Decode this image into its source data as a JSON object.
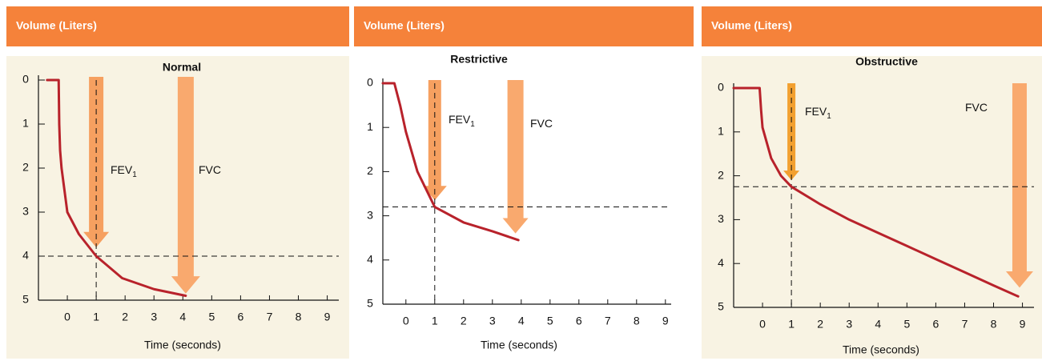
{
  "chart_data": [
    {
      "type": "line",
      "header": "Volume (Liters)",
      "title": "Normal",
      "x_label": "Time (seconds)",
      "xlim": [
        -1,
        9.4
      ],
      "xticks": [
        0,
        1,
        2,
        3,
        4,
        5,
        6,
        7,
        8,
        9
      ],
      "ylim": [
        5,
        0
      ],
      "yticks": [
        0,
        1,
        2,
        3,
        4,
        5
      ],
      "series": [
        {
          "color": "#b8222b",
          "x": [
            -0.7,
            -0.3,
            -0.28,
            -0.25,
            -0.2,
            0,
            0.4,
            1,
            1.9,
            3,
            4.1
          ],
          "values": [
            0,
            0,
            1,
            1.6,
            2,
            3,
            3.5,
            4,
            4.5,
            4.75,
            4.9
          ]
        }
      ],
      "reference": {
        "x": 1,
        "y": 4
      },
      "arrows": [
        {
          "label": "FEV",
          "subscript": "1",
          "x": 1,
          "y": 3.8,
          "color": "#f6a060"
        },
        {
          "label": "FVC",
          "x": 4.1,
          "y": 4.85,
          "color": "#f9a96e"
        }
      ]
    },
    {
      "type": "line",
      "header": "Volume (Liters)",
      "title": "Restrictive",
      "x_label": "Time (seconds)",
      "xlim": [
        -0.8,
        9.2
      ],
      "xticks": [
        0,
        1,
        2,
        3,
        4,
        5,
        6,
        7,
        8,
        9
      ],
      "ylim": [
        5,
        0
      ],
      "yticks": [
        0,
        1,
        2,
        3,
        4,
        5
      ],
      "series": [
        {
          "color": "#b8222b",
          "x": [
            -0.8,
            -0.4,
            -0.2,
            0,
            0.4,
            1,
            2,
            3,
            3.9
          ],
          "values": [
            0,
            0,
            0.5,
            1.1,
            2,
            2.8,
            3.15,
            3.35,
            3.55
          ]
        }
      ],
      "reference": {
        "x": 1,
        "y": 2.8
      },
      "arrows": [
        {
          "label": "FEV",
          "subscript": "1",
          "x": 1,
          "y": 2.65,
          "color": "#f6a060"
        },
        {
          "label": "FVC",
          "x": 3.8,
          "y": 3.4,
          "color": "#f9a96e"
        }
      ]
    },
    {
      "type": "line",
      "header": "Volume (Liters)",
      "title": "Obstructive",
      "x_label": "Time (seconds)",
      "xlim": [
        -1,
        9.4
      ],
      "xticks": [
        0,
        1,
        2,
        3,
        4,
        5,
        6,
        7,
        8,
        9
      ],
      "ylim": [
        5,
        0
      ],
      "yticks": [
        0,
        1,
        2,
        3,
        4,
        5
      ],
      "series": [
        {
          "color": "#b8222b",
          "x": [
            -1,
            -0.1,
            -0.05,
            0,
            0.3,
            0.64,
            1,
            2,
            3,
            4,
            5,
            6,
            7,
            8,
            8.85
          ],
          "values": [
            0,
            0,
            0.5,
            0.9,
            1.6,
            2,
            2.25,
            2.65,
            3,
            3.3,
            3.6,
            3.9,
            4.2,
            4.5,
            4.75
          ]
        }
      ],
      "reference": {
        "x": 1,
        "y": 2.25
      },
      "arrows": [
        {
          "label": "FEV",
          "subscript": "1",
          "x": 1,
          "y": 2.1,
          "color": "#f2a030"
        },
        {
          "label": "FVC",
          "x": 8.9,
          "y": 4.55,
          "color": "#f9a96e"
        }
      ]
    }
  ]
}
